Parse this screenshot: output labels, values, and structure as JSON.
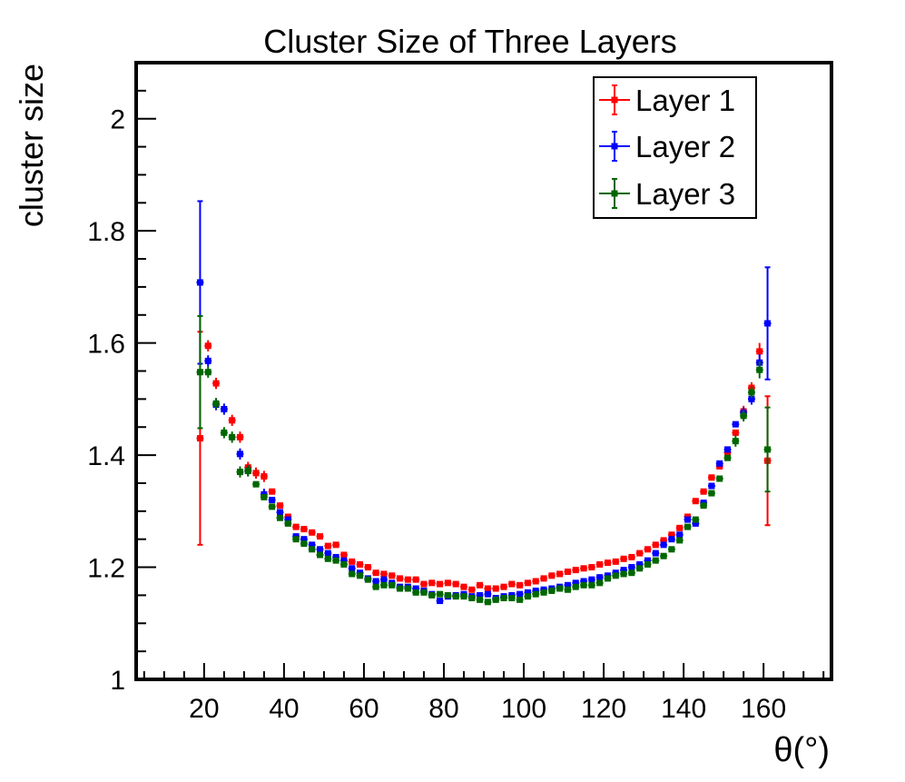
{
  "chart_data": {
    "type": "scatter",
    "title": "Cluster Size of Three Layers",
    "xlabel": "θ(°)",
    "ylabel": "cluster size",
    "xlim": [
      3,
      177
    ],
    "ylim": [
      1,
      2.1
    ],
    "x_ticks": [
      20,
      40,
      60,
      80,
      100,
      120,
      140,
      160
    ],
    "x_tick_labels": [
      "20",
      "40",
      "60",
      "80",
      "100",
      "120",
      "140",
      "160"
    ],
    "y_ticks": [
      1,
      1.2,
      1.4,
      1.6,
      1.8,
      2
    ],
    "y_tick_labels": [
      "1",
      "1.2",
      "1.4",
      "1.6",
      "1.8",
      "2"
    ],
    "grid": false,
    "legend_position": "top-right",
    "series": [
      {
        "name": "Layer 1",
        "color": "#ff0000",
        "x": [
          19,
          21,
          23,
          27,
          29,
          31,
          33,
          35,
          37,
          39,
          41,
          43,
          45,
          47,
          49,
          51,
          53,
          55,
          57,
          59,
          61,
          63,
          65,
          67,
          69,
          71,
          73,
          75,
          77,
          79,
          81,
          83,
          85,
          87,
          89,
          91,
          93,
          95,
          97,
          99,
          101,
          103,
          105,
          107,
          109,
          111,
          113,
          115,
          117,
          119,
          121,
          123,
          125,
          127,
          129,
          131,
          133,
          135,
          137,
          139,
          141,
          143,
          145,
          147,
          149,
          151,
          153,
          155,
          157,
          159,
          161
        ],
        "y": [
          1.43,
          1.595,
          1.528,
          1.462,
          1.432,
          1.378,
          1.368,
          1.362,
          1.335,
          1.31,
          1.29,
          1.272,
          1.268,
          1.262,
          1.255,
          1.238,
          1.24,
          1.222,
          1.21,
          1.205,
          1.2,
          1.19,
          1.188,
          1.185,
          1.18,
          1.178,
          1.178,
          1.17,
          1.172,
          1.17,
          1.172,
          1.17,
          1.165,
          1.16,
          1.168,
          1.162,
          1.162,
          1.165,
          1.17,
          1.168,
          1.172,
          1.175,
          1.18,
          1.185,
          1.188,
          1.192,
          1.195,
          1.198,
          1.2,
          1.205,
          1.208,
          1.21,
          1.215,
          1.218,
          1.225,
          1.232,
          1.24,
          1.248,
          1.258,
          1.27,
          1.29,
          1.318,
          1.335,
          1.36,
          1.38,
          1.405,
          1.44,
          1.478,
          1.52,
          1.585,
          1.39
        ],
        "yerr": [
          0.19,
          0.01,
          0.01,
          0.01,
          0.01,
          0.01,
          0.01,
          0.01,
          0.005,
          0.005,
          0.005,
          0.005,
          0.005,
          0.005,
          0.005,
          0.005,
          0.005,
          0.005,
          0.005,
          0.005,
          0.005,
          0.005,
          0.005,
          0.005,
          0.005,
          0.005,
          0.005,
          0.005,
          0.005,
          0.005,
          0.005,
          0.005,
          0.005,
          0.005,
          0.005,
          0.005,
          0.005,
          0.005,
          0.005,
          0.005,
          0.005,
          0.005,
          0.005,
          0.005,
          0.005,
          0.005,
          0.005,
          0.005,
          0.005,
          0.005,
          0.005,
          0.005,
          0.005,
          0.005,
          0.005,
          0.005,
          0.005,
          0.005,
          0.005,
          0.005,
          0.005,
          0.005,
          0.005,
          0.005,
          0.005,
          0.005,
          0.005,
          0.01,
          0.01,
          0.015,
          0.115
        ]
      },
      {
        "name": "Layer 2",
        "color": "#0000ff",
        "x": [
          19,
          21,
          23,
          25,
          29,
          31,
          35,
          37,
          39,
          41,
          43,
          45,
          47,
          49,
          51,
          53,
          55,
          57,
          59,
          61,
          63,
          65,
          67,
          69,
          71,
          73,
          75,
          77,
          79,
          81,
          83,
          85,
          87,
          89,
          91,
          93,
          95,
          97,
          99,
          101,
          103,
          105,
          107,
          109,
          111,
          113,
          115,
          117,
          119,
          121,
          123,
          125,
          127,
          129,
          131,
          133,
          135,
          137,
          139,
          141,
          143,
          145,
          147,
          149,
          151,
          153,
          155,
          157,
          159,
          161
        ],
        "y": [
          1.708,
          1.568,
          1.49,
          1.482,
          1.402,
          1.372,
          1.33,
          1.32,
          1.298,
          1.285,
          1.255,
          1.25,
          1.24,
          1.232,
          1.225,
          1.218,
          1.212,
          1.198,
          1.19,
          1.18,
          1.175,
          1.178,
          1.172,
          1.165,
          1.165,
          1.162,
          1.158,
          1.152,
          1.14,
          1.148,
          1.15,
          1.152,
          1.148,
          1.15,
          1.152,
          1.145,
          1.148,
          1.15,
          1.152,
          1.155,
          1.158,
          1.16,
          1.162,
          1.165,
          1.168,
          1.172,
          1.175,
          1.178,
          1.182,
          1.185,
          1.19,
          1.195,
          1.2,
          1.205,
          1.212,
          1.225,
          1.24,
          1.25,
          1.258,
          1.285,
          1.278,
          1.315,
          1.345,
          1.385,
          1.41,
          1.455,
          1.475,
          1.5,
          1.565,
          1.635
        ],
        "yerr": [
          0.145,
          0.01,
          0.01,
          0.01,
          0.01,
          0.01,
          0.01,
          0.005,
          0.005,
          0.005,
          0.005,
          0.005,
          0.005,
          0.005,
          0.005,
          0.005,
          0.005,
          0.005,
          0.005,
          0.005,
          0.005,
          0.005,
          0.005,
          0.005,
          0.005,
          0.005,
          0.005,
          0.005,
          0.005,
          0.005,
          0.005,
          0.005,
          0.005,
          0.005,
          0.005,
          0.005,
          0.005,
          0.005,
          0.005,
          0.005,
          0.005,
          0.005,
          0.005,
          0.005,
          0.005,
          0.005,
          0.005,
          0.005,
          0.005,
          0.005,
          0.005,
          0.005,
          0.005,
          0.005,
          0.005,
          0.005,
          0.005,
          0.005,
          0.005,
          0.005,
          0.005,
          0.005,
          0.005,
          0.005,
          0.005,
          0.005,
          0.01,
          0.01,
          0.015,
          0.1
        ]
      },
      {
        "name": "Layer 3",
        "color": "#006600",
        "x": [
          19,
          21,
          23,
          25,
          27,
          29,
          31,
          33,
          35,
          37,
          39,
          41,
          43,
          45,
          47,
          49,
          51,
          53,
          55,
          57,
          59,
          61,
          63,
          65,
          67,
          69,
          71,
          73,
          75,
          77,
          79,
          81,
          83,
          85,
          87,
          89,
          91,
          93,
          95,
          97,
          99,
          101,
          103,
          105,
          107,
          109,
          111,
          113,
          115,
          117,
          119,
          121,
          123,
          125,
          127,
          129,
          131,
          133,
          135,
          137,
          139,
          141,
          143,
          145,
          147,
          149,
          151,
          153,
          155,
          157,
          159,
          161
        ],
        "y": [
          1.548,
          1.548,
          1.492,
          1.44,
          1.432,
          1.37,
          1.372,
          1.348,
          1.325,
          1.308,
          1.288,
          1.278,
          1.25,
          1.242,
          1.232,
          1.222,
          1.215,
          1.212,
          1.205,
          1.188,
          1.185,
          1.178,
          1.165,
          1.168,
          1.168,
          1.162,
          1.162,
          1.155,
          1.155,
          1.15,
          1.152,
          1.15,
          1.148,
          1.148,
          1.145,
          1.142,
          1.138,
          1.142,
          1.145,
          1.145,
          1.142,
          1.148,
          1.152,
          1.155,
          1.158,
          1.162,
          1.16,
          1.165,
          1.168,
          1.168,
          1.172,
          1.18,
          1.185,
          1.188,
          1.19,
          1.198,
          1.205,
          1.212,
          1.22,
          1.232,
          1.248,
          1.272,
          1.285,
          1.31,
          1.332,
          1.358,
          1.395,
          1.425,
          1.47,
          1.512,
          1.552,
          1.41
        ],
        "yerr": [
          0.1,
          0.01,
          0.01,
          0.01,
          0.01,
          0.01,
          0.01,
          0.005,
          0.005,
          0.005,
          0.005,
          0.005,
          0.005,
          0.005,
          0.005,
          0.005,
          0.005,
          0.005,
          0.005,
          0.005,
          0.005,
          0.005,
          0.005,
          0.005,
          0.005,
          0.005,
          0.005,
          0.005,
          0.005,
          0.005,
          0.005,
          0.005,
          0.005,
          0.005,
          0.005,
          0.005,
          0.005,
          0.005,
          0.005,
          0.005,
          0.005,
          0.005,
          0.005,
          0.005,
          0.005,
          0.005,
          0.005,
          0.005,
          0.005,
          0.005,
          0.005,
          0.005,
          0.005,
          0.005,
          0.005,
          0.005,
          0.005,
          0.005,
          0.005,
          0.005,
          0.005,
          0.005,
          0.005,
          0.005,
          0.005,
          0.005,
          0.005,
          0.01,
          0.01,
          0.01,
          0.015,
          0.075
        ]
      }
    ]
  }
}
